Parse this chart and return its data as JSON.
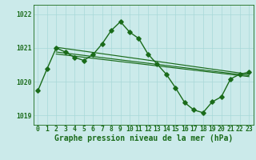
{
  "line1_x": [
    0,
    1,
    2,
    3,
    4,
    5,
    6,
    7,
    8,
    9,
    10,
    11,
    12,
    13,
    14,
    15,
    16,
    17,
    18,
    19,
    20,
    21,
    22,
    23
  ],
  "line1_y": [
    1019.73,
    1020.38,
    1021.0,
    1020.88,
    1020.72,
    1020.63,
    1020.8,
    1021.12,
    1021.52,
    1021.78,
    1021.47,
    1021.28,
    1020.82,
    1020.52,
    1020.22,
    1019.82,
    1019.38,
    1019.16,
    1019.08,
    1019.4,
    1019.55,
    1020.08,
    1020.22,
    1020.28
  ],
  "line2_x": [
    2,
    23
  ],
  "line2_y": [
    1021.02,
    1020.22
  ],
  "line3_x": [
    2,
    23
  ],
  "line3_y": [
    1020.88,
    1020.18
  ],
  "line4_x": [
    2,
    23
  ],
  "line4_y": [
    1020.82,
    1020.15
  ],
  "ylim_min": 1018.72,
  "ylim_max": 1022.28,
  "ytick_locs": [
    1019,
    1020,
    1021,
    1022
  ],
  "ytick_labels": [
    "1019",
    "1020",
    "1021",
    "1022"
  ],
  "xticks": [
    0,
    1,
    2,
    3,
    4,
    5,
    6,
    7,
    8,
    9,
    10,
    11,
    12,
    13,
    14,
    15,
    16,
    17,
    18,
    19,
    20,
    21,
    22,
    23
  ],
  "xlabel": "Graphe pression niveau de la mer (hPa)",
  "line_color": "#1a6b1a",
  "bg_color": "#cbeaea",
  "grid_color": "#a8d8d8",
  "markersize": 2.8,
  "linewidth": 1.0,
  "tick_fontsize": 5.8,
  "label_fontsize": 7.0
}
